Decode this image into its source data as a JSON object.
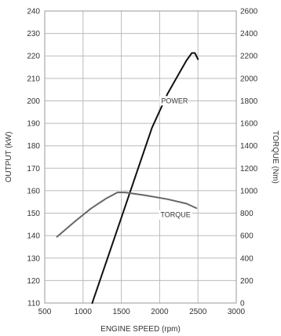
{
  "chart_data": {
    "type": "line",
    "title": "",
    "xlabel": "ENGINE SPEED (rpm)",
    "ylabel_left": "OUTPUT (kW)",
    "ylabel_right": "TORQUE (Nm)",
    "xlim": [
      500,
      3000
    ],
    "ylim_left": [
      110,
      240
    ],
    "ylim_right": [
      0,
      2600
    ],
    "x_ticks": [
      500,
      1000,
      1500,
      2000,
      2500,
      3000
    ],
    "y_left_ticks": [
      110,
      120,
      130,
      140,
      150,
      160,
      170,
      180,
      190,
      200,
      210,
      220,
      230,
      240
    ],
    "y_right_ticks": [
      0,
      200,
      400,
      600,
      800,
      1000,
      1200,
      1400,
      1600,
      1800,
      2000,
      2200,
      2400,
      2600
    ],
    "grid": true,
    "series": [
      {
        "name": "POWER",
        "axis": "left",
        "color": "#111111",
        "x": [
          1120,
          1300,
          1500,
          1700,
          1900,
          2100,
          2250,
          2350,
          2420,
          2460,
          2500
        ],
        "y": [
          110,
          128,
          148,
          168,
          188,
          203,
          212,
          218,
          221.3,
          221.3,
          218.5
        ]
      },
      {
        "name": "TORQUE",
        "axis": "right",
        "color": "#666666",
        "x": [
          660,
          900,
          1100,
          1300,
          1450,
          1550,
          1800,
          2100,
          2350,
          2480
        ],
        "y": [
          590,
          730,
          840,
          930,
          985,
          985,
          960,
          925,
          885,
          845
        ]
      }
    ],
    "annotations": [
      {
        "text": "POWER",
        "series": 0,
        "x": 2020,
        "y": 199
      },
      {
        "text": "TORQUE",
        "series": 1,
        "x": 2010,
        "y": 148.2
      }
    ]
  }
}
